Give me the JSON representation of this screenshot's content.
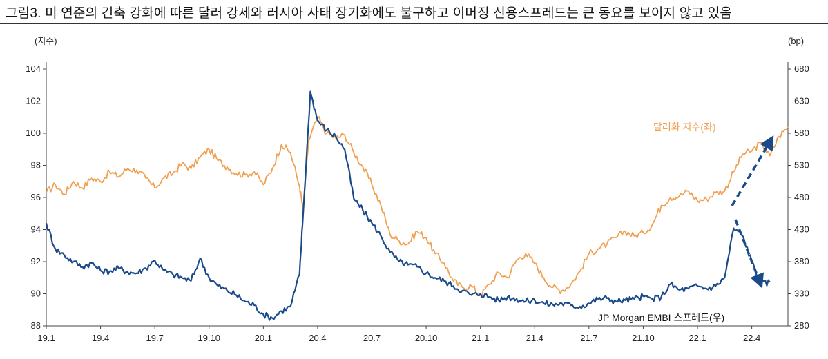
{
  "title": "그림3. 미 연준의 긴축 강화에 따른 달러 강세와 러시아 사태 장기화에도 불구하고 이머징 신용스프레드는 큰 동요를 보이지 않고 있음",
  "chart_data": {
    "type": "line",
    "left_axis": {
      "unit_label": "(지수)",
      "range": [
        88,
        104
      ],
      "ticks": [
        88,
        90,
        92,
        94,
        96,
        98,
        100,
        102,
        104
      ]
    },
    "right_axis": {
      "unit_label": "(bp)",
      "range": [
        280,
        680
      ],
      "ticks": [
        280,
        330,
        380,
        430,
        480,
        530,
        580,
        630,
        680
      ]
    },
    "x_ticks": [
      "19.1",
      "19.4",
      "19.7",
      "19.10",
      "20.1",
      "20.4",
      "20.7",
      "20.10",
      "21.1",
      "21.4",
      "21.7",
      "21.10",
      "22.1",
      "22.4"
    ],
    "x_range_months": [
      0,
      41
    ],
    "series": [
      {
        "name": "달러화 지수(좌)",
        "axis": "left",
        "color": "#f0a050",
        "points": [
          [
            0,
            96.3
          ],
          [
            0.5,
            96.8
          ],
          [
            1,
            96.2
          ],
          [
            1.5,
            97.0
          ],
          [
            2,
            96.6
          ],
          [
            2.5,
            97.2
          ],
          [
            3,
            97.0
          ],
          [
            3.5,
            97.6
          ],
          [
            4,
            97.3
          ],
          [
            4.5,
            97.8
          ],
          [
            5,
            97.7
          ],
          [
            5.5,
            97.2
          ],
          [
            6,
            96.6
          ],
          [
            6.5,
            97.2
          ],
          [
            7,
            97.5
          ],
          [
            7.5,
            98.1
          ],
          [
            8,
            97.8
          ],
          [
            8.5,
            98.5
          ],
          [
            9,
            99.0
          ],
          [
            9.5,
            98.3
          ],
          [
            10,
            97.9
          ],
          [
            10.5,
            97.5
          ],
          [
            11,
            97.4
          ],
          [
            11.5,
            97.6
          ],
          [
            12,
            96.8
          ],
          [
            12.5,
            97.8
          ],
          [
            13,
            99.3
          ],
          [
            13.5,
            98.8
          ],
          [
            14,
            96.7
          ],
          [
            14.2,
            95.2
          ],
          [
            14.5,
            99.5
          ],
          [
            15,
            101.0
          ],
          [
            15.5,
            100.0
          ],
          [
            16,
            99.7
          ],
          [
            16.5,
            99.9
          ],
          [
            17,
            98.8
          ],
          [
            17.5,
            97.9
          ],
          [
            18,
            96.8
          ],
          [
            18.5,
            95.5
          ],
          [
            19,
            93.7
          ],
          [
            19.5,
            93.3
          ],
          [
            20,
            93.1
          ],
          [
            20.5,
            93.9
          ],
          [
            21,
            93.5
          ],
          [
            21.5,
            92.5
          ],
          [
            22,
            91.9
          ],
          [
            22.5,
            90.8
          ],
          [
            23,
            90.4
          ],
          [
            23.5,
            90.5
          ],
          [
            24,
            89.9
          ],
          [
            24.5,
            90.6
          ],
          [
            25,
            91.3
          ],
          [
            25.5,
            91.0
          ],
          [
            26,
            92.1
          ],
          [
            26.5,
            92.5
          ],
          [
            27,
            91.9
          ],
          [
            27.5,
            91.0
          ],
          [
            28,
            90.4
          ],
          [
            28.5,
            90.2
          ],
          [
            29,
            90.6
          ],
          [
            29.5,
            91.4
          ],
          [
            30,
            92.5
          ],
          [
            30.5,
            92.8
          ],
          [
            31,
            93.1
          ],
          [
            31.5,
            93.5
          ],
          [
            32,
            93.9
          ],
          [
            32.5,
            93.6
          ],
          [
            33,
            93.8
          ],
          [
            33.5,
            94.3
          ],
          [
            34,
            95.5
          ],
          [
            34.5,
            96.0
          ],
          [
            35,
            96.1
          ],
          [
            35.5,
            96.4
          ],
          [
            36,
            95.8
          ],
          [
            36.5,
            95.9
          ],
          [
            37,
            96.3
          ],
          [
            37.5,
            96.4
          ],
          [
            38,
            97.6
          ],
          [
            38.5,
            98.7
          ],
          [
            39,
            98.9
          ],
          [
            39.5,
            99.4
          ],
          [
            40,
            98.6
          ],
          [
            40.5,
            99.8
          ],
          [
            41,
            100.4
          ]
        ]
      },
      {
        "name": "JP Morgan EMBI 스프레드(우)",
        "axis": "right",
        "color": "#1a4a8a",
        "points": [
          [
            0,
            440
          ],
          [
            0.5,
            400
          ],
          [
            1,
            390
          ],
          [
            1.5,
            380
          ],
          [
            2,
            372
          ],
          [
            2.5,
            378
          ],
          [
            3,
            366
          ],
          [
            3.5,
            365
          ],
          [
            4,
            370
          ],
          [
            4.5,
            364
          ],
          [
            5,
            362
          ],
          [
            5.5,
            370
          ],
          [
            6,
            382
          ],
          [
            6.5,
            366
          ],
          [
            7,
            360
          ],
          [
            7.5,
            355
          ],
          [
            8,
            350
          ],
          [
            8.5,
            385
          ],
          [
            9,
            355
          ],
          [
            9.5,
            342
          ],
          [
            10,
            335
          ],
          [
            10.5,
            328
          ],
          [
            11,
            318
          ],
          [
            11.5,
            312
          ],
          [
            12,
            298
          ],
          [
            12.5,
            292
          ],
          [
            13,
            303
          ],
          [
            13.5,
            310
          ],
          [
            14,
            360
          ],
          [
            14.2,
            455
          ],
          [
            14.6,
            645
          ],
          [
            15,
            600
          ],
          [
            15.5,
            585
          ],
          [
            16,
            575
          ],
          [
            16.5,
            555
          ],
          [
            17,
            478
          ],
          [
            17.5,
            460
          ],
          [
            18,
            440
          ],
          [
            18.5,
            420
          ],
          [
            19,
            395
          ],
          [
            19.5,
            380
          ],
          [
            20,
            375
          ],
          [
            20.5,
            372
          ],
          [
            21,
            362
          ],
          [
            21.5,
            355
          ],
          [
            22,
            350
          ],
          [
            22.5,
            342
          ],
          [
            23,
            335
          ],
          [
            23.5,
            328
          ],
          [
            24,
            330
          ],
          [
            24.5,
            325
          ],
          [
            25,
            320
          ],
          [
            25.5,
            325
          ],
          [
            26,
            322
          ],
          [
            26.5,
            318
          ],
          [
            27,
            320
          ],
          [
            27.5,
            315
          ],
          [
            28,
            313
          ],
          [
            28.5,
            315
          ],
          [
            29,
            312
          ],
          [
            29.5,
            310
          ],
          [
            30,
            315
          ],
          [
            30.5,
            322
          ],
          [
            31,
            323
          ],
          [
            31.5,
            318
          ],
          [
            32,
            320
          ],
          [
            32.5,
            322
          ],
          [
            33,
            326
          ],
          [
            33.5,
            322
          ],
          [
            34,
            325
          ],
          [
            34.5,
            345
          ],
          [
            35,
            336
          ],
          [
            35.5,
            338
          ],
          [
            36,
            342
          ],
          [
            36.5,
            338
          ],
          [
            37,
            342
          ],
          [
            37.5,
            355
          ],
          [
            38,
            432
          ],
          [
            38.5,
            420
          ],
          [
            39,
            380
          ],
          [
            39.5,
            345
          ],
          [
            40,
            348
          ]
        ]
      }
    ],
    "annotations": [
      "dashed arrow pointing up from the dollar index line",
      "dashed arrow pointing down from the EMBI spread line"
    ]
  }
}
